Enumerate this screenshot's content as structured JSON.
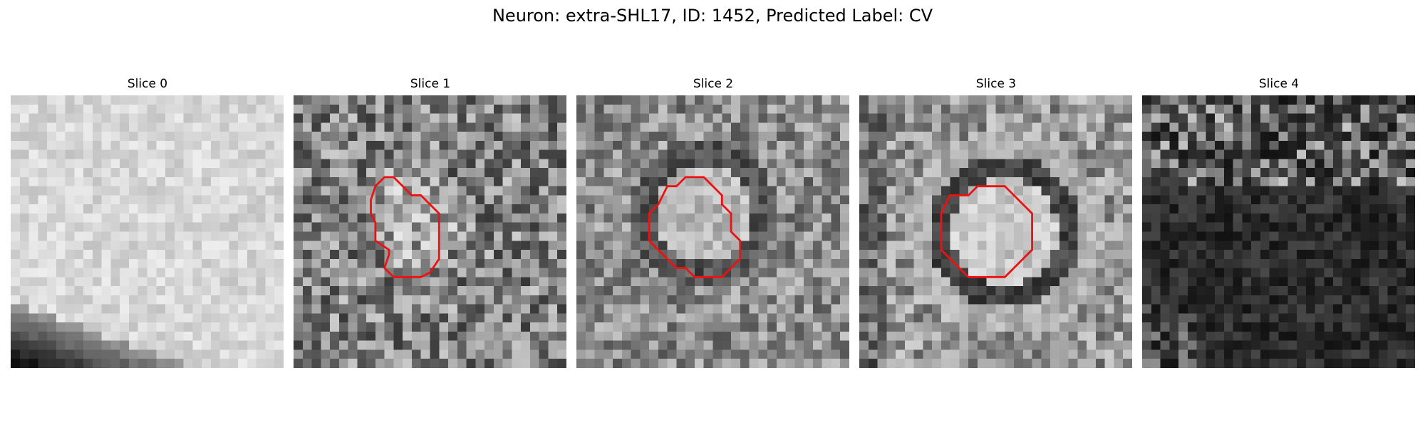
{
  "figure_title": "Neuron: extra-SHL17, ID: 1452, Predicted Label: CV",
  "grid_size": 30,
  "contour_color": "#ee1111",
  "panels": [
    {
      "title": "Slice 0",
      "seed": 11,
      "has_contour": false
    },
    {
      "title": "Slice 1",
      "seed": 23,
      "has_contour": true
    },
    {
      "title": "Slice 2",
      "seed": 37,
      "has_contour": true
    },
    {
      "title": "Slice 3",
      "seed": 51,
      "has_contour": true
    },
    {
      "title": "Slice 4",
      "seed": 67,
      "has_contour": false
    }
  ]
}
